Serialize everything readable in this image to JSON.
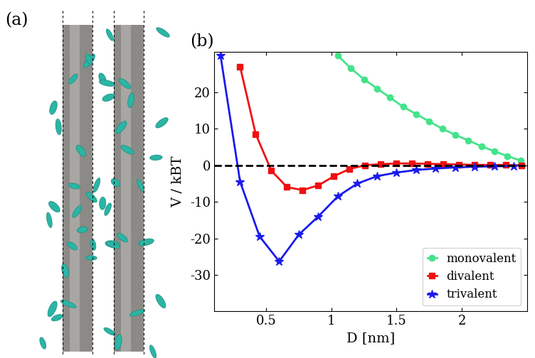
{
  "panel_labels": [
    "(a)",
    "(b)"
  ],
  "chart_data": {
    "type": "line",
    "x_label": "D [nm]",
    "y_label": "V / kBT",
    "xlim": [
      0.1,
      2.5
    ],
    "xticks": [
      0.5,
      1,
      1.5,
      2
    ],
    "ylim": [
      -40,
      31
    ],
    "yticks": [
      -30,
      -20,
      -10,
      0,
      10,
      20
    ],
    "hline": 0,
    "legend": "lower right",
    "grid": false,
    "series": [
      {
        "name": "monovalent",
        "color": "#44e38a",
        "marker": "circle",
        "x": [
          1.05,
          1.15,
          1.25,
          1.35,
          1.45,
          1.55,
          1.65,
          1.75,
          1.85,
          1.95,
          2.05,
          2.15,
          2.25,
          2.35,
          2.45
        ],
        "values": [
          30,
          26.5,
          23.5,
          21,
          18.5,
          16,
          14,
          12,
          10,
          8.3,
          6.8,
          5.2,
          3.8,
          2.5,
          1.3
        ]
      },
      {
        "name": "divalent",
        "color": "#ee1111",
        "marker": "square",
        "x": [
          0.3,
          0.42,
          0.54,
          0.66,
          0.78,
          0.9,
          1.02,
          1.14,
          1.26,
          1.38,
          1.5,
          1.62,
          1.74,
          1.86,
          1.98,
          2.1,
          2.22,
          2.34,
          2.46
        ],
        "values": [
          27,
          8.5,
          -1.5,
          -6,
          -6.8,
          -5.5,
          -3,
          -1,
          0,
          0.3,
          0.5,
          0.5,
          0.4,
          0.3,
          0.2,
          0.1,
          0.1,
          0.05,
          0
        ]
      },
      {
        "name": "trivalent",
        "color": "#1a1aee",
        "marker": "star",
        "x": [
          0.15,
          0.3,
          0.45,
          0.6,
          0.75,
          0.9,
          1.05,
          1.2,
          1.35,
          1.5,
          1.65,
          1.8,
          1.95,
          2.1,
          2.25,
          2.4
        ],
        "values": [
          30,
          -4.5,
          -19.5,
          -26.3,
          -19,
          -14,
          -8.5,
          -5,
          -3,
          -2,
          -1.3,
          -0.9,
          -0.6,
          -0.4,
          -0.3,
          -0.2
        ]
      }
    ]
  }
}
